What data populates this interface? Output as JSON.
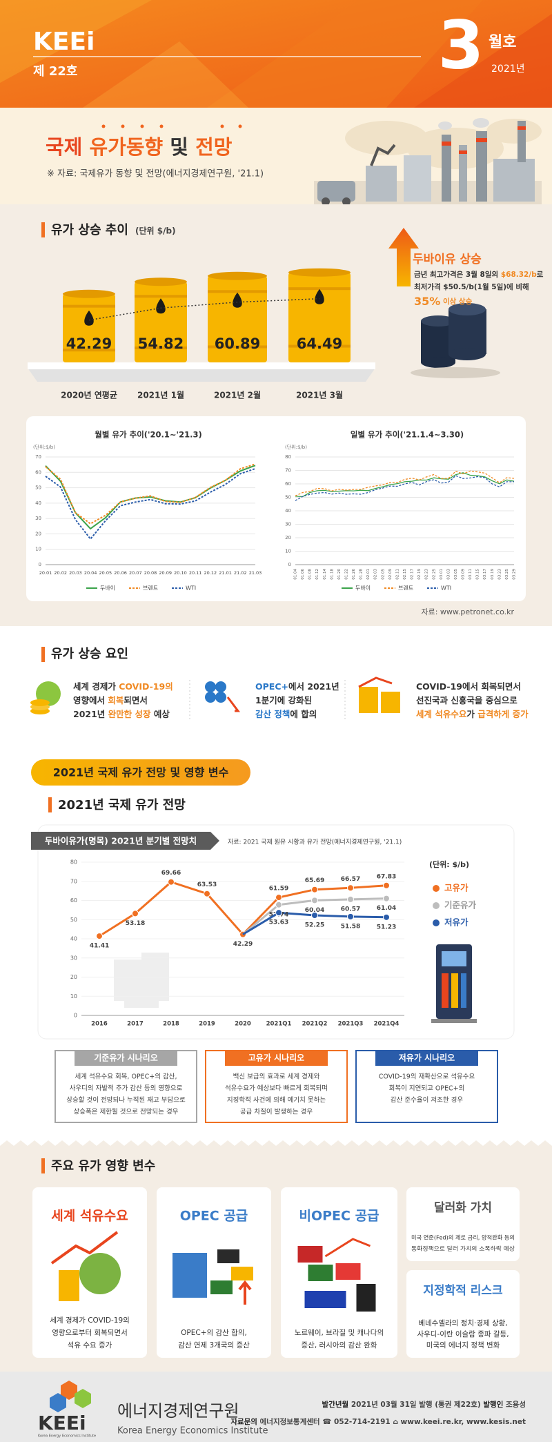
{
  "header": {
    "brand": "KEEi",
    "issue": "제 22호",
    "month": "3",
    "month_unit": "월호",
    "year": "2021년"
  },
  "title": {
    "parts": [
      {
        "text": "국제 ",
        "color": "#e8451e"
      },
      {
        "text": "유가동향 ",
        "color": "#f0641e"
      },
      {
        "text": "및 ",
        "color": "#333333"
      },
      {
        "text": "전망",
        "color": "#f0641e"
      }
    ],
    "source": "※ 자료: 국제유가 동향 및 전망(에너지경제연구원, '21.1)"
  },
  "trend": {
    "heading": "유가 상승 추이",
    "unit": "(단위 $/b)",
    "callout": {
      "title": "두바이유 상승",
      "lines": [
        [
          {
            "text": "금년 최고가격은 3월 8일의 ",
            "color": "#333333"
          },
          {
            "text": "$68.32/b",
            "color": "#f08a24"
          },
          {
            "text": "로",
            "color": "#333333"
          }
        ],
        [
          {
            "text": "최저가격 $50.5/b(1월 5일)에 비해",
            "color": "#333333"
          }
        ],
        [
          {
            "text": "35%",
            "color": "#f08a24",
            "size": 16
          },
          {
            "text": " 이상 상승",
            "color": "#f08a24"
          }
        ]
      ]
    },
    "source": "자료: www.petronet.co.kr"
  },
  "factors": {
    "heading": "유가 상승 요인",
    "items": [
      {
        "lines": [
          [
            {
              "text": "세계 경제가 ",
              "color": "#333333"
            },
            {
              "text": "COVID-19의",
              "color": "#f08a24"
            }
          ],
          [
            {
              "text": "영향에서 ",
              "color": "#333333"
            },
            {
              "text": "회복",
              "color": "#f08a24"
            },
            {
              "text": "되면서",
              "color": "#333333"
            }
          ],
          [
            {
              "text": "2021년 ",
              "color": "#333333"
            },
            {
              "text": "완만한 성장",
              "color": "#f08a24"
            },
            {
              "text": " 예상",
              "color": "#333333"
            }
          ]
        ]
      },
      {
        "lines": [
          [
            {
              "text": "OPEC+",
              "color": "#2a78c8"
            },
            {
              "text": "에서 2021년",
              "color": "#333333"
            }
          ],
          [
            {
              "text": "1분기에 강화된",
              "color": "#333333"
            }
          ],
          [
            {
              "text": "감산 정책",
              "color": "#2a78c8"
            },
            {
              "text": "에 합의",
              "color": "#333333"
            }
          ]
        ]
      },
      {
        "lines": [
          [
            {
              "text": "COVID-19에서 회복되면서",
              "color": "#333333"
            }
          ],
          [
            {
              "text": "선진국과 신흥국을 중심으로",
              "color": "#333333"
            }
          ],
          [
            {
              "text": "세계 석유수요",
              "color": "#f08a24"
            },
            {
              "text": "가 ",
              "color": "#333333"
            },
            {
              "text": "급격하게 증가",
              "color": "#f08a24"
            }
          ]
        ]
      }
    ]
  },
  "outlook": {
    "banner": "2021년 국제 유가 전망 및 영향 변수",
    "heading": "2021년 국제 유가 전망",
    "scenarios": [
      {
        "title": "기준유가 시나리오",
        "color": "#a6a6a6",
        "lines": [
          "세계 석유수요 회복, OPEC+의 감산,",
          "사우디의 자발적 추가 감산 등의 영향으로",
          "상승할 것이 전망되나 누적된 재고 부담으로",
          "상승폭은 제한될 것으로 전망되는 경우"
        ]
      },
      {
        "title": "고유가 시나리오",
        "color": "#f07022",
        "lines": [
          "백신 보급의 효과로 세계 경제와",
          "석유수요가 예상보다 빠르게 회복되며",
          "지정학적 사건에 의해 예기치 못하는",
          "공급 차질이 발생하는 경우"
        ]
      },
      {
        "title": "저유가 시나리오",
        "color": "#2a5caa",
        "lines": [
          "COVID-19의 재확산으로 석유수요",
          "회복이 지연되고 OPEC+의",
          "감산 준수율이 저조한 경우"
        ]
      }
    ]
  },
  "variables": {
    "heading": "주요 유가 영향 변수",
    "cards": [
      {
        "title": "세계 석유수요",
        "color": "#e8451e",
        "lines": [
          "세계 경제가 COVID-19의",
          "영향으로부터 회복되면서",
          "석유 수요 증가"
        ]
      },
      {
        "title": "OPEC 공급",
        "color": "#3a7cc8",
        "lines": [
          "OPEC+의 감산 합의,",
          "감산 연제 3개국의 증산"
        ]
      },
      {
        "title": "비OPEC 공급",
        "color": "#3a7cc8",
        "lines": [
          "노르웨이, 브라질 및 캐나다의",
          "증산, 러시아의 감산 완화"
        ]
      },
      {
        "title": "달러화 가치",
        "color": "#555555",
        "lines": [
          "미국 연준(Fed)의 제로 금리, 양적완화 등의",
          "통화정책으로 달러 가치의 소폭하락 예상"
        ]
      },
      {
        "title": "지정학적 리스크",
        "color": "#3a7cc8",
        "lines": [
          "베네수엘라의 정치·경제 상황,",
          "사우디-이란 이슬람 종파 갈등,",
          "미국의 에너지 정책 변화"
        ]
      }
    ]
  },
  "footer": {
    "logo": "KEEi",
    "logo_sub": "Korea Energy Economics Institute",
    "org": "에너지경제연구원",
    "org_en": "Korea Energy Economics Institute",
    "line1": [
      {
        "text": "발간년월 ",
        "color": "#222222"
      },
      {
        "text": "2021년 03월 31일 발행 (통권 제22호) ",
        "color": "#444444"
      },
      {
        "text": "발행인 ",
        "color": "#222222"
      },
      {
        "text": "조용성",
        "color": "#444444"
      }
    ],
    "line2": [
      {
        "text": "자료문의 ",
        "color": "#222222"
      },
      {
        "text": "에너지정보통계센터  ☎ 052-714-2191  ⌂ www.keei.re.kr, www.kesis.net",
        "color": "#444444"
      }
    ]
  },
  "chart_data": [
    {
      "type": "bar",
      "categories": [
        "2020년 연평균",
        "2021년 1월",
        "2021년 2월",
        "2021년 3월"
      ],
      "values": [
        42.29,
        54.82,
        60.89,
        64.49
      ],
      "color": "#f7b500"
    },
    {
      "type": "line",
      "title": "월별 유가 추이('20.1~'21.3)",
      "y_label": "(단위:$/b)",
      "categories": [
        "20.01",
        "20.02",
        "20.03",
        "20.04",
        "20.05",
        "20.06",
        "20.07",
        "20.08",
        "20.09",
        "20.10",
        "20.11",
        "20.12",
        "21.01",
        "21.02",
        "21.03"
      ],
      "series": [
        {
          "name": "두바이",
          "color": "#3aa34a",
          "dash": false,
          "values": [
            64.3,
            54.2,
            33.7,
            23.4,
            30.5,
            40.8,
            43.3,
            44.0,
            41.5,
            40.7,
            43.5,
            49.8,
            54.8,
            60.9,
            64.5
          ]
        },
        {
          "name": "브렌트",
          "color": "#f08a24",
          "dash": true,
          "values": [
            63.7,
            55.5,
            33.7,
            26.6,
            32.1,
            40.8,
            43.2,
            44.7,
            41.1,
            40.5,
            43.6,
            50.2,
            54.8,
            62.3,
            65.4
          ]
        },
        {
          "name": "WTI",
          "color": "#2a5caa",
          "dash": true,
          "values": [
            57.5,
            50.5,
            29.2,
            16.7,
            28.6,
            38.3,
            40.7,
            42.3,
            39.6,
            39.4,
            41.4,
            47.1,
            52.1,
            59.1,
            62.4
          ]
        }
      ],
      "ylim": [
        0,
        70
      ],
      "yticks": [
        0,
        10,
        20,
        30,
        40,
        50,
        60,
        70
      ],
      "grid": true
    },
    {
      "type": "line",
      "title": "일별 유가 추이('21.1.4~3.30)",
      "y_label": "(단위:$/b)",
      "categories": [
        "01.04",
        "01.06",
        "01.08",
        "01.12",
        "01.14",
        "01.18",
        "01.20",
        "01.22",
        "01.26",
        "01.28",
        "02.01",
        "02.03",
        "02.05",
        "02.09",
        "02.11",
        "02.15",
        "02.17",
        "02.19",
        "02.23",
        "02.25",
        "03.01",
        "03.03",
        "03.05",
        "03.09",
        "03.11",
        "03.15",
        "03.17",
        "03.19",
        "03.23",
        "03.25",
        "03.29"
      ],
      "series": [
        {
          "name": "두바이",
          "color": "#3aa34a",
          "dash": false,
          "values": [
            50.8,
            50.5,
            53.6,
            54.9,
            55.2,
            54.3,
            54.6,
            55.0,
            54.8,
            55.3,
            55.0,
            56.6,
            57.9,
            59.4,
            60.2,
            61.6,
            62.0,
            62.9,
            62.8,
            64.5,
            63.8,
            63.5,
            66.8,
            68.3,
            66.4,
            66.1,
            65.2,
            62.3,
            60.1,
            62.9,
            62.0
          ]
        },
        {
          "name": "브렌트",
          "color": "#f08a24",
          "dash": true,
          "values": [
            51.1,
            53.6,
            54.4,
            56.6,
            56.4,
            54.8,
            56.0,
            55.4,
            55.9,
            55.9,
            57.5,
            58.5,
            59.3,
            61.1,
            61.1,
            63.3,
            64.3,
            62.9,
            65.2,
            66.9,
            64.0,
            64.1,
            69.4,
            67.5,
            69.6,
            68.9,
            68.0,
            64.5,
            60.8,
            64.6,
            64.1
          ]
        },
        {
          "name": "WTI",
          "color": "#2a5caa",
          "dash": true,
          "values": [
            47.6,
            50.6,
            52.2,
            53.2,
            53.6,
            52.4,
            53.2,
            52.3,
            52.6,
            52.3,
            53.6,
            55.7,
            56.9,
            58.4,
            58.2,
            60.0,
            61.1,
            59.2,
            61.7,
            63.2,
            60.6,
            61.3,
            66.1,
            64.0,
            64.4,
            65.4,
            64.6,
            60.0,
            57.8,
            61.6,
            61.6
          ]
        }
      ],
      "ylim": [
        0,
        80
      ],
      "yticks": [
        0,
        10,
        20,
        30,
        40,
        50,
        60,
        70,
        80
      ],
      "grid": true
    },
    {
      "type": "line",
      "title": "두바이유가(명목) 2021년 분기별 전망치",
      "source": "자료:  2021 국제 원유 시황과 유가 전망(에너지경제연구원, '21.1)",
      "y_label": "(단위: $/b)",
      "categories": [
        "2016",
        "2017",
        "2018",
        "2019",
        "2020",
        "2021Q1",
        "2021Q2",
        "2021Q3",
        "2021Q4"
      ],
      "series": [
        {
          "name": "고유가",
          "color": "#f07022",
          "values": [
            41.41,
            53.18,
            69.66,
            63.53,
            42.29,
            61.59,
            65.69,
            66.57,
            67.83
          ]
        },
        {
          "name": "기준유가",
          "color": "#bdbdbd",
          "values": [
            null,
            null,
            null,
            null,
            null,
            57.74,
            60.04,
            60.57,
            61.04
          ]
        },
        {
          "name": "저유가",
          "color": "#2a5caa",
          "values": [
            null,
            null,
            null,
            null,
            null,
            53.63,
            52.25,
            51.58,
            51.23
          ]
        }
      ],
      "ylim": [
        0,
        80
      ],
      "yticks": [
        0,
        10,
        20,
        30,
        40,
        50,
        60,
        70,
        80
      ],
      "grid": true
    }
  ]
}
